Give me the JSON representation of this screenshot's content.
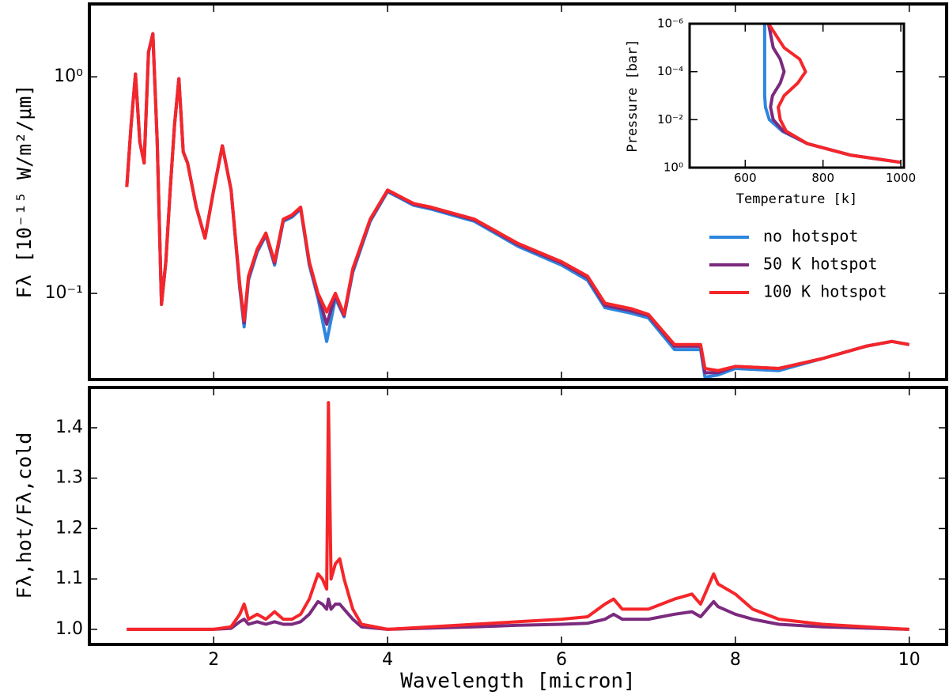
{
  "chart_data": [
    {
      "type": "line",
      "ylabel": "Fλ [10⁻¹⁵ W/m²/μm]",
      "log_y": true,
      "legend": "right",
      "x": [
        1.0,
        1.05,
        1.1,
        1.15,
        1.2,
        1.25,
        1.3,
        1.35,
        1.4,
        1.45,
        1.5,
        1.55,
        1.6,
        1.65,
        1.7,
        1.8,
        1.9,
        2.0,
        2.1,
        2.2,
        2.3,
        2.35,
        2.4,
        2.5,
        2.6,
        2.7,
        2.8,
        2.9,
        3.0,
        3.1,
        3.2,
        3.3,
        3.4,
        3.5,
        3.6,
        3.8,
        4.0,
        4.3,
        4.5,
        5.0,
        5.5,
        6.0,
        6.3,
        6.5,
        6.8,
        7.0,
        7.3,
        7.6,
        7.65,
        7.8,
        8.0,
        8.5,
        9.0,
        9.5,
        9.8,
        10.0
      ],
      "series": [
        {
          "name": "no hotspot",
          "color": "#2e86de",
          "values": [
            0.31,
            0.6,
            1.03,
            0.5,
            0.4,
            1.3,
            1.58,
            0.5,
            0.089,
            0.14,
            0.3,
            0.6,
            0.98,
            0.45,
            0.4,
            0.25,
            0.18,
            0.3,
            0.48,
            0.3,
            0.105,
            0.07,
            0.115,
            0.155,
            0.185,
            0.135,
            0.215,
            0.225,
            0.245,
            0.135,
            0.095,
            0.06,
            0.095,
            0.078,
            0.125,
            0.215,
            0.295,
            0.255,
            0.245,
            0.215,
            0.165,
            0.135,
            0.115,
            0.086,
            0.081,
            0.077,
            0.055,
            0.055,
            0.041,
            0.042,
            0.045,
            0.044,
            0.05,
            0.057,
            0.06,
            0.058
          ]
        },
        {
          "name": "50 K hotspot",
          "color": "#7b2a7e",
          "values": [
            0.31,
            0.6,
            1.03,
            0.5,
            0.4,
            1.3,
            1.58,
            0.5,
            0.089,
            0.14,
            0.3,
            0.6,
            0.98,
            0.45,
            0.4,
            0.25,
            0.18,
            0.3,
            0.48,
            0.3,
            0.108,
            0.073,
            0.118,
            0.158,
            0.188,
            0.138,
            0.218,
            0.228,
            0.248,
            0.138,
            0.098,
            0.072,
            0.098,
            0.079,
            0.128,
            0.218,
            0.298,
            0.258,
            0.248,
            0.218,
            0.168,
            0.138,
            0.118,
            0.088,
            0.083,
            0.079,
            0.057,
            0.057,
            0.043,
            0.043,
            0.046,
            0.045,
            0.05,
            0.057,
            0.06,
            0.058
          ]
        },
        {
          "name": "100 K hotspot",
          "color": "#f5262a",
          "values": [
            0.31,
            0.6,
            1.03,
            0.5,
            0.4,
            1.3,
            1.58,
            0.5,
            0.089,
            0.14,
            0.3,
            0.6,
            0.98,
            0.45,
            0.4,
            0.25,
            0.18,
            0.3,
            0.48,
            0.3,
            0.11,
            0.075,
            0.12,
            0.16,
            0.19,
            0.14,
            0.22,
            0.23,
            0.25,
            0.14,
            0.1,
            0.082,
            0.1,
            0.08,
            0.13,
            0.22,
            0.3,
            0.26,
            0.25,
            0.22,
            0.17,
            0.14,
            0.12,
            0.09,
            0.085,
            0.08,
            0.058,
            0.058,
            0.045,
            0.044,
            0.046,
            0.045,
            0.05,
            0.057,
            0.06,
            0.058
          ]
        }
      ],
      "xlim": [
        0.57,
        10.43
      ],
      "ylim": [
        0.04,
        2.17
      ],
      "yticks": [
        {
          "value": 1,
          "label": "10⁰"
        },
        {
          "value": 0.1,
          "label": "10⁻¹"
        }
      ]
    },
    {
      "type": "line",
      "xlabel": "Wavelength [micron]",
      "ylabel": "Fλ,hot/Fλ,cold",
      "x": [
        1.0,
        2.0,
        2.2,
        2.3,
        2.35,
        2.4,
        2.5,
        2.6,
        2.7,
        2.8,
        2.9,
        3.0,
        3.1,
        3.2,
        3.25,
        3.3,
        3.32,
        3.35,
        3.4,
        3.45,
        3.5,
        3.6,
        3.7,
        4.0,
        5.0,
        5.5,
        6.0,
        6.3,
        6.5,
        6.6,
        6.7,
        7.0,
        7.3,
        7.5,
        7.6,
        7.7,
        7.75,
        7.8,
        8.0,
        8.2,
        8.5,
        9.0,
        10.0
      ],
      "series": [
        {
          "color": "#7b2a7e",
          "values": [
            1.0,
            1.0,
            1.002,
            1.015,
            1.02,
            1.01,
            1.015,
            1.01,
            1.015,
            1.01,
            1.01,
            1.015,
            1.03,
            1.055,
            1.05,
            1.04,
            1.06,
            1.04,
            1.05,
            1.05,
            1.04,
            1.02,
            1.005,
            1.0,
            1.005,
            1.008,
            1.01,
            1.012,
            1.02,
            1.03,
            1.02,
            1.02,
            1.03,
            1.035,
            1.025,
            1.045,
            1.055,
            1.045,
            1.03,
            1.02,
            1.01,
            1.005,
            1.0
          ]
        },
        {
          "color": "#f5262a",
          "values": [
            1.0,
            1.0,
            1.005,
            1.03,
            1.05,
            1.02,
            1.03,
            1.02,
            1.035,
            1.02,
            1.02,
            1.03,
            1.06,
            1.11,
            1.1,
            1.08,
            1.45,
            1.1,
            1.13,
            1.14,
            1.1,
            1.04,
            1.01,
            1.0,
            1.01,
            1.015,
            1.02,
            1.025,
            1.05,
            1.06,
            1.04,
            1.04,
            1.06,
            1.07,
            1.05,
            1.09,
            1.11,
            1.09,
            1.07,
            1.04,
            1.02,
            1.01,
            1.0
          ]
        }
      ],
      "xlim": [
        0.57,
        10.43
      ],
      "ylim": [
        0.97,
        1.48
      ],
      "xticks": [
        2,
        4,
        6,
        8,
        10
      ],
      "yticks": [
        {
          "value": 1,
          "label": "1.0"
        },
        1.1,
        1.2,
        1.3,
        1.4
      ]
    },
    {
      "type": "profile",
      "xlabel": "Temperature [k]",
      "ylabel": "Pressure [bar]",
      "log_y": true,
      "y": [
        1e-06,
        1e-05,
        3e-05,
        0.0001,
        0.0003,
        0.001,
        0.003,
        0.01,
        0.03,
        0.1,
        0.3,
        0.6
      ],
      "series": [
        {
          "color": "#2e86de",
          "values": [
            650,
            650,
            650,
            650,
            650,
            650,
            652,
            662,
            695,
            760,
            870,
            1000
          ]
        },
        {
          "color": "#7b2a7e",
          "values": [
            660,
            672,
            690,
            700,
            690,
            670,
            665,
            672,
            698,
            760,
            870,
            1000
          ]
        },
        {
          "color": "#f5262a",
          "values": [
            660,
            700,
            740,
            755,
            735,
            700,
            685,
            690,
            705,
            760,
            870,
            1000
          ]
        }
      ],
      "xlim": [
        457,
        1008
      ],
      "ylim": [
        1,
        1e-06
      ],
      "xticks": [
        600,
        800,
        1000
      ],
      "yticks": [
        {
          "value": 1e-06,
          "label": "10⁻⁶"
        },
        {
          "value": 0.0001,
          "label": "10⁻⁴"
        },
        {
          "value": 0.01,
          "label": "10⁻²"
        },
        {
          "value": 1,
          "label": "10⁰"
        }
      ]
    }
  ]
}
